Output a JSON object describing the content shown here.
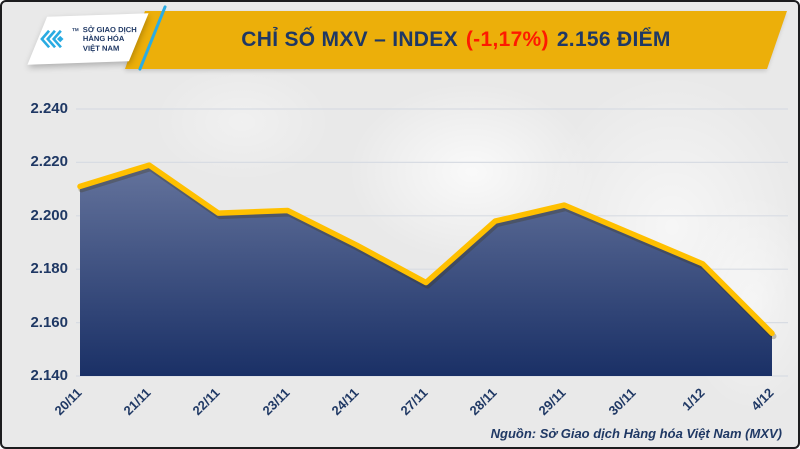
{
  "header": {
    "logo": {
      "icon": "mxv-chevron-logo",
      "tm": "TM",
      "org_lines": [
        "SỞ GIAO DỊCH",
        "HÀNG HÓA",
        "VIỆT NAM"
      ]
    },
    "title": {
      "prefix": "CHỈ SỐ MXV – INDEX",
      "change": "(-1,17%)",
      "value": "2.156 ĐIỂM"
    }
  },
  "footer": {
    "source": "Nguồn: Sở Giao dịch Hàng hóa Việt Nam (MXV)"
  },
  "colors": {
    "banner_gold": "#ECAF0A",
    "navy_text": "#1F3864",
    "change_red": "#FE1A00",
    "line_gold": "#FFC000",
    "logo_blue": "#29ABE2",
    "background_gray": "#E9E9E9"
  },
  "chart_data": {
    "type": "area",
    "title": "CHỈ SỐ MXV – INDEX (-1,17%) 2.156 ĐIỂM",
    "unit": "điểm",
    "categories": [
      "20/11",
      "21/11",
      "22/11",
      "23/11",
      "24/11",
      "27/11",
      "28/11",
      "29/11",
      "30/11",
      "1/12",
      "4/12"
    ],
    "values": [
      2211,
      2219,
      2201,
      2202,
      2189,
      2175,
      2198,
      2204,
      2193,
      2182,
      2156
    ],
    "ylim": [
      2140,
      2240
    ],
    "ytick_step": 20,
    "ytick_labels": [
      "2.240",
      "2.220",
      "2.200",
      "2.180",
      "2.160",
      "2.140"
    ],
    "grid": true,
    "legend_position": "none",
    "line_color": "#FFC000",
    "area_gradient_top": "#64739C",
    "area_gradient_bottom": "#1A3066"
  }
}
